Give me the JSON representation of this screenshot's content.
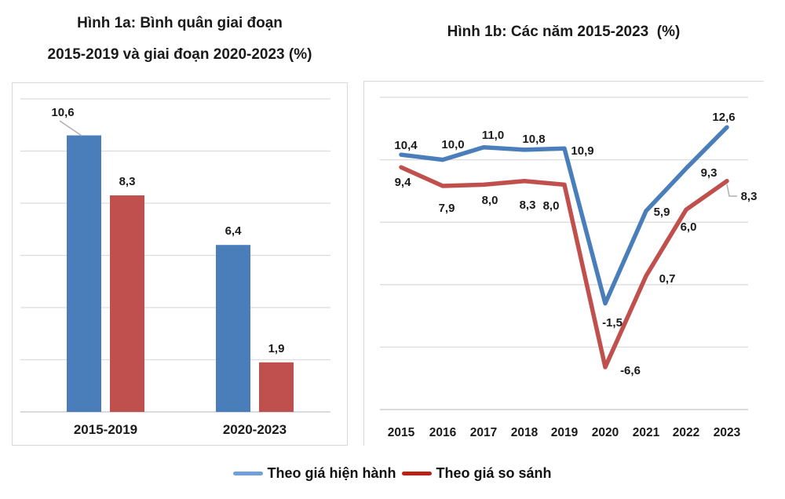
{
  "figure": {
    "title_1a_line1": "Hình 1a: Bình quân giai đoạn",
    "title_1a_line2": "2015-2019 và giai đoạn 2020-2023 (%)",
    "title_1b": "Hình 1b: Các năm 2015-2023  (%)"
  },
  "legend": {
    "items": [
      {
        "name": "Theo giá hiện hành",
        "swatch_color": "#6fa0d9"
      },
      {
        "name": "Theo giá so sánh",
        "swatch_color": "#bb2213"
      }
    ]
  },
  "colors": {
    "series_blue": "#4a7ebb",
    "series_red": "#c0504d",
    "gridline": "#dcdcdc",
    "axis_line": "#c4c4c4",
    "leader_line": "#b0b0b0",
    "text": "#1a1a1a"
  },
  "chart_data": [
    {
      "type": "bar",
      "title": "Hình 1a: Bình quân giai đoạn 2015-2019 và giai đoạn 2020-2023 (%)",
      "categories": [
        "2015-2019",
        "2020-2023"
      ],
      "series": [
        {
          "name": "Theo giá hiện hành",
          "color": "#4a7ebb",
          "values": [
            10.6,
            6.4
          ],
          "labels": [
            "10,6",
            "6,4"
          ]
        },
        {
          "name": "Theo giá so sánh",
          "color": "#c0504d",
          "values": [
            8.3,
            1.9
          ],
          "labels": [
            "8,3",
            "1,9"
          ]
        }
      ],
      "ylabel": "",
      "xlabel": "",
      "ylim": [
        0,
        12
      ],
      "gridline_step": 2,
      "grid": true,
      "value_axis_labels_visible": false
    },
    {
      "type": "line",
      "title": "Hình 1b: Các năm 2015-2023 (%)",
      "categories": [
        "2015",
        "2016",
        "2017",
        "2018",
        "2019",
        "2020",
        "2021",
        "2022",
        "2023"
      ],
      "series": [
        {
          "name": "Theo giá hiện hành",
          "color": "#4a7ebb",
          "values": [
            10.4,
            10.0,
            11.0,
            10.8,
            10.9,
            -1.5,
            5.9,
            9.3,
            12.6
          ],
          "labels": [
            "10,4",
            "10,0",
            "11,0",
            "10,8",
            "10,9",
            "-1,5",
            "5,9",
            "9,3",
            "12,6"
          ]
        },
        {
          "name": "Theo giá so sánh",
          "color": "#c0504d",
          "values": [
            9.4,
            7.9,
            8.0,
            8.3,
            8.0,
            -6.6,
            0.7,
            6.0,
            8.3
          ],
          "labels": [
            "9,4",
            "7,9",
            "8,0",
            "8,3",
            "8,0",
            "-6,6",
            "0,7",
            "6,0",
            "8,3"
          ]
        }
      ],
      "ylabel": "",
      "xlabel": "",
      "ylim": [
        -10,
        15
      ],
      "gridline_step": 5,
      "grid": true,
      "value_axis_labels_visible": false,
      "legend_position": "bottom"
    }
  ]
}
